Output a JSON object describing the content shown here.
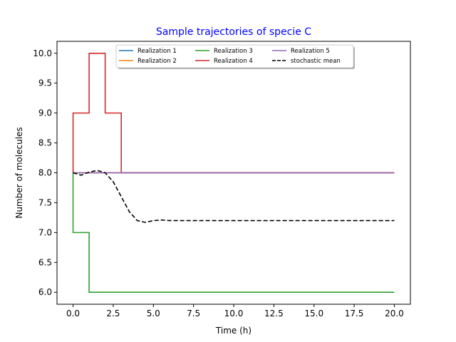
{
  "chart_data": {
    "type": "line",
    "title": "Sample trajectories of specie C",
    "title_color": "#0000ff",
    "xlabel": "Time (h)",
    "ylabel": "Number of molecules",
    "xlim": [
      -1,
      21
    ],
    "ylim": [
      5.8,
      10.2
    ],
    "x_ticks": [
      0,
      2.5,
      5,
      7.5,
      10,
      12.5,
      15,
      17.5,
      20
    ],
    "x_tick_labels": [
      "0.0",
      "2.5",
      "5.0",
      "7.5",
      "10.0",
      "12.5",
      "15.0",
      "17.5",
      "20.0"
    ],
    "y_ticks": [
      6,
      6.5,
      7,
      7.5,
      8,
      8.5,
      9,
      9.5,
      10
    ],
    "y_tick_labels": [
      "6.0",
      "6.5",
      "7.0",
      "7.5",
      "8.0",
      "8.5",
      "9.0",
      "9.5",
      "10.0"
    ],
    "grid": false,
    "legend_position": "top-center",
    "series": [
      {
        "name": "Realization 1",
        "color": "#1f77b4",
        "style": "step",
        "x": [
          0,
          20
        ],
        "y": [
          8,
          8
        ]
      },
      {
        "name": "Realization 2",
        "color": "#ff7f0e",
        "style": "step",
        "x": [
          0,
          20
        ],
        "y": [
          8,
          8
        ]
      },
      {
        "name": "Realization 3",
        "color": "#2ca02c",
        "style": "step",
        "x": [
          0,
          1,
          20
        ],
        "y": [
          7,
          6,
          6
        ],
        "start": 8
      },
      {
        "name": "Realization 4",
        "color": "#d62728",
        "style": "step",
        "x": [
          0,
          1,
          2,
          3,
          20
        ],
        "y": [
          9,
          10,
          9,
          8,
          8
        ],
        "start": 8
      },
      {
        "name": "Realization 5",
        "color": "#9467bd",
        "style": "step",
        "x": [
          0,
          20
        ],
        "y": [
          8,
          8
        ]
      },
      {
        "name": "stochastic mean",
        "color": "#000000",
        "style": "dashed",
        "x": [
          0,
          0.5,
          1,
          1.5,
          2,
          2.5,
          3,
          3.5,
          4,
          4.5,
          5,
          5.5,
          6,
          7,
          8,
          10,
          12,
          15,
          20
        ],
        "y": [
          8.0,
          7.96,
          8.01,
          8.04,
          8.0,
          7.85,
          7.6,
          7.35,
          7.2,
          7.17,
          7.2,
          7.21,
          7.2,
          7.2,
          7.2,
          7.2,
          7.2,
          7.2,
          7.2
        ]
      }
    ]
  }
}
